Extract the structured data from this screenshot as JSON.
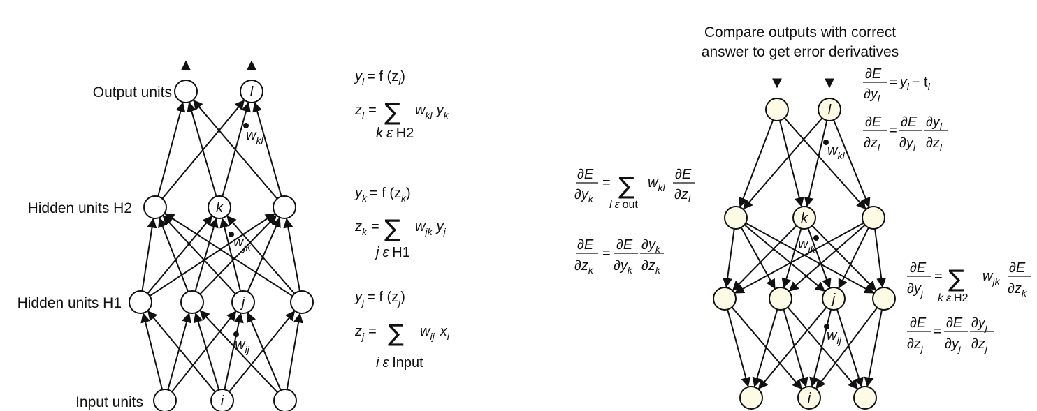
{
  "colors": {
    "left_node_fill": "#ffffff",
    "right_node_fill": "#fdfbe6",
    "ink": "#111111"
  },
  "left": {
    "labels": {
      "output": "Output units",
      "h2": "Hidden units H2",
      "h1": "Hidden units H1",
      "input": "Input units"
    },
    "nodes": {
      "l": "l",
      "k": "k",
      "j": "j",
      "i": "i"
    },
    "weights": {
      "kl": "kl",
      "jk": "jk",
      "ij": "ij",
      "w": "w"
    },
    "eq_output": {
      "lhs1": "y",
      "sub1": "l",
      "rhs1": "= f (z",
      "rhs1sub": "l",
      "close": ")",
      "lhs2": "z",
      "sub2": "l",
      "eq2": "=",
      "w": "w",
      "wsub": "kl",
      "y": "y",
      "ysub": "k",
      "range_var": "k",
      "range_set": "H2"
    },
    "eq_h2": {
      "lhs1": "y",
      "sub1": "k",
      "rhs1": "= f (z",
      "rhs1sub": "k",
      "close": ")",
      "lhs2": "z",
      "sub2": "k",
      "eq2": "=",
      "w": "w",
      "wsub": "jk",
      "y": "y",
      "ysub": "j",
      "range_var": "j",
      "range_set": "H1"
    },
    "eq_h1": {
      "lhs1": "y",
      "sub1": "j",
      "rhs1": "= f (z",
      "rhs1sub": "j",
      "close": ")",
      "lhs2": "z",
      "sub2": "j",
      "eq2": "=",
      "w": "w",
      "wsub": "ij",
      "x": "x",
      "xsub": "i",
      "range_var": "i",
      "range_set": "Input"
    },
    "epsilon": "ε",
    "sum": "∑"
  },
  "right": {
    "caption_line1": "Compare outputs with correct",
    "caption_line2": "answer to get error derivatives",
    "nodes": {
      "l": "l",
      "k": "k",
      "j": "j",
      "i": "i"
    },
    "weights": {
      "kl": "kl",
      "jk": "jk",
      "ij": "ij",
      "w": "w"
    },
    "partial": "∂",
    "E": "E",
    "out": "out",
    "H2": "H2",
    "minus_t": "− t",
    "eq_sign": "="
  }
}
